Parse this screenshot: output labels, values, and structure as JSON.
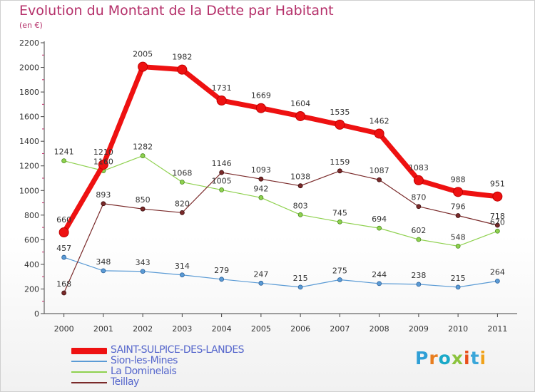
{
  "title": "Evolution du Montant de la Dette par Habitant",
  "subtitle": "(en €)",
  "logo": {
    "letters": [
      "P",
      "r",
      "o",
      "x",
      "i",
      "t",
      "i"
    ],
    "colors": [
      "#2f9fd6",
      "#e87d1e",
      "#1aa9c8",
      "#8bc33d",
      "#e84f1c",
      "#3aa6d9",
      "#f0a21a"
    ]
  },
  "chart_data": {
    "type": "line",
    "x": [
      "2000",
      "2001",
      "2002",
      "2003",
      "2004",
      "2005",
      "2006",
      "2007",
      "2008",
      "2009",
      "2010",
      "2011"
    ],
    "ylim": [
      0,
      2200
    ],
    "yticks": [
      "0",
      "200",
      "400",
      "600",
      "800",
      "1000",
      "1200",
      "1400",
      "1600",
      "1800",
      "2000",
      "2200"
    ],
    "grid": false,
    "legend_position": "bottom-left",
    "series": [
      {
        "name": "SAINT-SULPICE-DES-LANDES",
        "color": "#ee1111",
        "values": [
          660,
          1210,
          2005,
          1982,
          1731,
          1669,
          1604,
          1535,
          1462,
          1083,
          988,
          951
        ],
        "labels": [
          "660",
          "1210",
          "2005",
          "1982",
          "1731",
          "1669",
          "1604",
          "1535",
          "1462",
          "1083",
          "988",
          "951"
        ]
      },
      {
        "name": "Sion-les-Mines",
        "color": "#5b9bd5",
        "values": [
          457,
          348,
          343,
          314,
          279,
          247,
          215,
          275,
          244,
          238,
          215,
          264
        ],
        "labels": [
          "457",
          "348",
          "343",
          "314",
          "279",
          "247",
          "215",
          "275",
          "244",
          "238",
          "215",
          "264"
        ]
      },
      {
        "name": "La Dominelais",
        "color": "#8fd14f",
        "values": [
          1241,
          1160,
          1282,
          1068,
          1005,
          942,
          803,
          745,
          694,
          602,
          548,
          670
        ],
        "labels": [
          "1241",
          "1160",
          "1282",
          "1068",
          "1005",
          "942",
          "803",
          "745",
          "694",
          "602",
          "548",
          "670"
        ]
      },
      {
        "name": "Teillay",
        "color": "#7a2a2a",
        "values": [
          168,
          893,
          850,
          820,
          1146,
          1093,
          1038,
          1159,
          1087,
          870,
          796,
          718
        ],
        "labels": [
          "168",
          "893",
          "850",
          "820",
          "1146",
          "1093",
          "1038",
          "1159",
          "1087",
          "870",
          "796",
          "718"
        ]
      }
    ]
  }
}
